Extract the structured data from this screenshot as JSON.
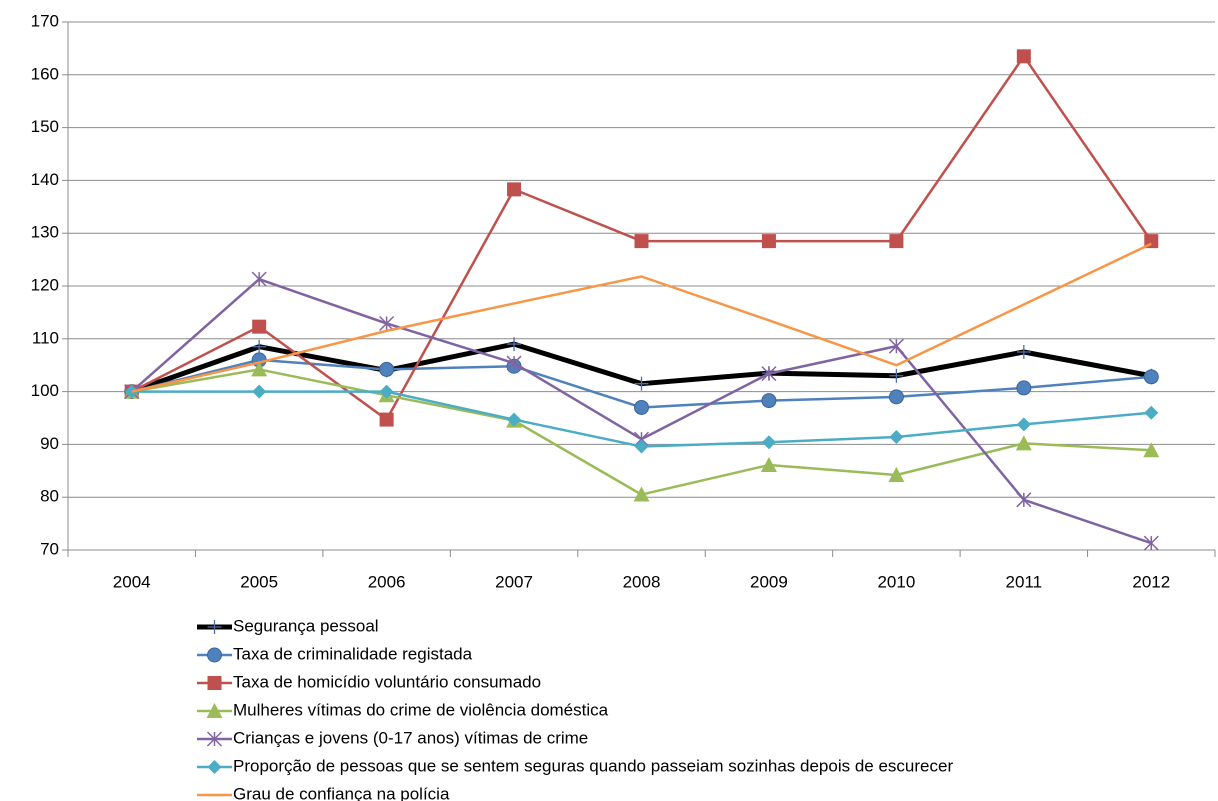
{
  "chart_data": {
    "type": "line",
    "categories": [
      "2004",
      "2005",
      "2006",
      "2007",
      "2008",
      "2009",
      "2010",
      "2011",
      "2012"
    ],
    "ylim": [
      70,
      170
    ],
    "yticks": [
      70,
      80,
      90,
      100,
      110,
      120,
      130,
      140,
      150,
      160,
      170
    ],
    "grid": true,
    "legend": "bottom",
    "series": [
      {
        "name": "Segurança pessoal",
        "color": "#000000",
        "marker": "plus",
        "values": [
          100,
          108.5,
          104,
          109,
          101.5,
          103.5,
          103,
          107.5,
          103
        ]
      },
      {
        "name": "Taxa de criminalidade registada",
        "color": "#4f81bd",
        "marker": "circle",
        "values": [
          100,
          106,
          104.2,
          104.8,
          97,
          98.3,
          99,
          100.7,
          102.8
        ]
      },
      {
        "name": "Taxa de homicídio voluntário consumado",
        "color": "#c0504d",
        "marker": "square",
        "values": [
          100,
          112.3,
          94.7,
          138.3,
          128.5,
          128.5,
          128.5,
          163.5,
          128.5
        ]
      },
      {
        "name": "Mulheres vítimas do crime de violência doméstica",
        "color": "#9bbb59",
        "marker": "triangle",
        "values": [
          100,
          104.2,
          99.3,
          94.5,
          80.5,
          86.1,
          84.2,
          90.2,
          88.9
        ]
      },
      {
        "name": "Crianças e jovens (0-17 anos) vítimas de crime",
        "color": "#8064a2",
        "marker": "star",
        "values": [
          100,
          121.3,
          112.9,
          105.4,
          91,
          103.4,
          108.6,
          79.5,
          71.3
        ]
      },
      {
        "name": "Proporção de pessoas que se sentem seguras quando passeiam sozinhas depois de escurecer",
        "color": "#4bacc6",
        "marker": "diamond",
        "values": [
          100,
          100,
          100,
          94.7,
          89.6,
          90.4,
          91.4,
          93.8,
          96
        ]
      },
      {
        "name": "Grau de confiança na polícia",
        "color": "#f79646",
        "marker": "none",
        "values": [
          100,
          105.5,
          111.5,
          116.7,
          121.8,
          113.5,
          105,
          116.5,
          128
        ]
      }
    ]
  }
}
